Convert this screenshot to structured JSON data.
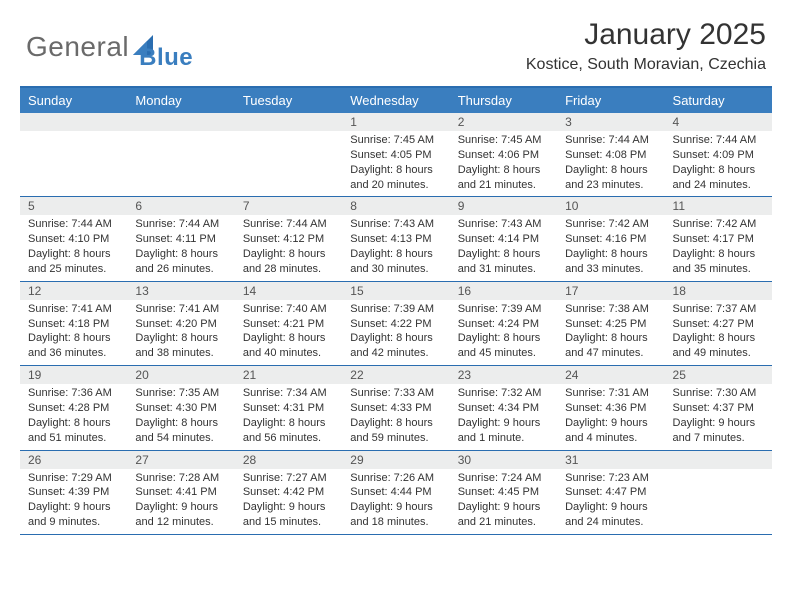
{
  "brand": {
    "part1": "General",
    "part2": "Blue"
  },
  "title": "January 2025",
  "location": "Kostice, South Moravian, Czechia",
  "colors": {
    "header_bg": "#3a7ebf",
    "border": "#2a6db0",
    "daynum_bg": "#eceded",
    "logo_gray": "#6a6a6a",
    "logo_blue": "#3a7ebf"
  },
  "dayNames": [
    "Sunday",
    "Monday",
    "Tuesday",
    "Wednesday",
    "Thursday",
    "Friday",
    "Saturday"
  ],
  "weeks": [
    [
      {
        "empty": true
      },
      {
        "empty": true
      },
      {
        "empty": true
      },
      {
        "num": "1",
        "sunrise": "Sunrise: 7:45 AM",
        "sunset": "Sunset: 4:05 PM",
        "day1": "Daylight: 8 hours",
        "day2": "and 20 minutes."
      },
      {
        "num": "2",
        "sunrise": "Sunrise: 7:45 AM",
        "sunset": "Sunset: 4:06 PM",
        "day1": "Daylight: 8 hours",
        "day2": "and 21 minutes."
      },
      {
        "num": "3",
        "sunrise": "Sunrise: 7:44 AM",
        "sunset": "Sunset: 4:08 PM",
        "day1": "Daylight: 8 hours",
        "day2": "and 23 minutes."
      },
      {
        "num": "4",
        "sunrise": "Sunrise: 7:44 AM",
        "sunset": "Sunset: 4:09 PM",
        "day1": "Daylight: 8 hours",
        "day2": "and 24 minutes."
      }
    ],
    [
      {
        "num": "5",
        "sunrise": "Sunrise: 7:44 AM",
        "sunset": "Sunset: 4:10 PM",
        "day1": "Daylight: 8 hours",
        "day2": "and 25 minutes."
      },
      {
        "num": "6",
        "sunrise": "Sunrise: 7:44 AM",
        "sunset": "Sunset: 4:11 PM",
        "day1": "Daylight: 8 hours",
        "day2": "and 26 minutes."
      },
      {
        "num": "7",
        "sunrise": "Sunrise: 7:44 AM",
        "sunset": "Sunset: 4:12 PM",
        "day1": "Daylight: 8 hours",
        "day2": "and 28 minutes."
      },
      {
        "num": "8",
        "sunrise": "Sunrise: 7:43 AM",
        "sunset": "Sunset: 4:13 PM",
        "day1": "Daylight: 8 hours",
        "day2": "and 30 minutes."
      },
      {
        "num": "9",
        "sunrise": "Sunrise: 7:43 AM",
        "sunset": "Sunset: 4:14 PM",
        "day1": "Daylight: 8 hours",
        "day2": "and 31 minutes."
      },
      {
        "num": "10",
        "sunrise": "Sunrise: 7:42 AM",
        "sunset": "Sunset: 4:16 PM",
        "day1": "Daylight: 8 hours",
        "day2": "and 33 minutes."
      },
      {
        "num": "11",
        "sunrise": "Sunrise: 7:42 AM",
        "sunset": "Sunset: 4:17 PM",
        "day1": "Daylight: 8 hours",
        "day2": "and 35 minutes."
      }
    ],
    [
      {
        "num": "12",
        "sunrise": "Sunrise: 7:41 AM",
        "sunset": "Sunset: 4:18 PM",
        "day1": "Daylight: 8 hours",
        "day2": "and 36 minutes."
      },
      {
        "num": "13",
        "sunrise": "Sunrise: 7:41 AM",
        "sunset": "Sunset: 4:20 PM",
        "day1": "Daylight: 8 hours",
        "day2": "and 38 minutes."
      },
      {
        "num": "14",
        "sunrise": "Sunrise: 7:40 AM",
        "sunset": "Sunset: 4:21 PM",
        "day1": "Daylight: 8 hours",
        "day2": "and 40 minutes."
      },
      {
        "num": "15",
        "sunrise": "Sunrise: 7:39 AM",
        "sunset": "Sunset: 4:22 PM",
        "day1": "Daylight: 8 hours",
        "day2": "and 42 minutes."
      },
      {
        "num": "16",
        "sunrise": "Sunrise: 7:39 AM",
        "sunset": "Sunset: 4:24 PM",
        "day1": "Daylight: 8 hours",
        "day2": "and 45 minutes."
      },
      {
        "num": "17",
        "sunrise": "Sunrise: 7:38 AM",
        "sunset": "Sunset: 4:25 PM",
        "day1": "Daylight: 8 hours",
        "day2": "and 47 minutes."
      },
      {
        "num": "18",
        "sunrise": "Sunrise: 7:37 AM",
        "sunset": "Sunset: 4:27 PM",
        "day1": "Daylight: 8 hours",
        "day2": "and 49 minutes."
      }
    ],
    [
      {
        "num": "19",
        "sunrise": "Sunrise: 7:36 AM",
        "sunset": "Sunset: 4:28 PM",
        "day1": "Daylight: 8 hours",
        "day2": "and 51 minutes."
      },
      {
        "num": "20",
        "sunrise": "Sunrise: 7:35 AM",
        "sunset": "Sunset: 4:30 PM",
        "day1": "Daylight: 8 hours",
        "day2": "and 54 minutes."
      },
      {
        "num": "21",
        "sunrise": "Sunrise: 7:34 AM",
        "sunset": "Sunset: 4:31 PM",
        "day1": "Daylight: 8 hours",
        "day2": "and 56 minutes."
      },
      {
        "num": "22",
        "sunrise": "Sunrise: 7:33 AM",
        "sunset": "Sunset: 4:33 PM",
        "day1": "Daylight: 8 hours",
        "day2": "and 59 minutes."
      },
      {
        "num": "23",
        "sunrise": "Sunrise: 7:32 AM",
        "sunset": "Sunset: 4:34 PM",
        "day1": "Daylight: 9 hours",
        "day2": "and 1 minute."
      },
      {
        "num": "24",
        "sunrise": "Sunrise: 7:31 AM",
        "sunset": "Sunset: 4:36 PM",
        "day1": "Daylight: 9 hours",
        "day2": "and 4 minutes."
      },
      {
        "num": "25",
        "sunrise": "Sunrise: 7:30 AM",
        "sunset": "Sunset: 4:37 PM",
        "day1": "Daylight: 9 hours",
        "day2": "and 7 minutes."
      }
    ],
    [
      {
        "num": "26",
        "sunrise": "Sunrise: 7:29 AM",
        "sunset": "Sunset: 4:39 PM",
        "day1": "Daylight: 9 hours",
        "day2": "and 9 minutes."
      },
      {
        "num": "27",
        "sunrise": "Sunrise: 7:28 AM",
        "sunset": "Sunset: 4:41 PM",
        "day1": "Daylight: 9 hours",
        "day2": "and 12 minutes."
      },
      {
        "num": "28",
        "sunrise": "Sunrise: 7:27 AM",
        "sunset": "Sunset: 4:42 PM",
        "day1": "Daylight: 9 hours",
        "day2": "and 15 minutes."
      },
      {
        "num": "29",
        "sunrise": "Sunrise: 7:26 AM",
        "sunset": "Sunset: 4:44 PM",
        "day1": "Daylight: 9 hours",
        "day2": "and 18 minutes."
      },
      {
        "num": "30",
        "sunrise": "Sunrise: 7:24 AM",
        "sunset": "Sunset: 4:45 PM",
        "day1": "Daylight: 9 hours",
        "day2": "and 21 minutes."
      },
      {
        "num": "31",
        "sunrise": "Sunrise: 7:23 AM",
        "sunset": "Sunset: 4:47 PM",
        "day1": "Daylight: 9 hours",
        "day2": "and 24 minutes."
      },
      {
        "empty": true
      }
    ]
  ]
}
